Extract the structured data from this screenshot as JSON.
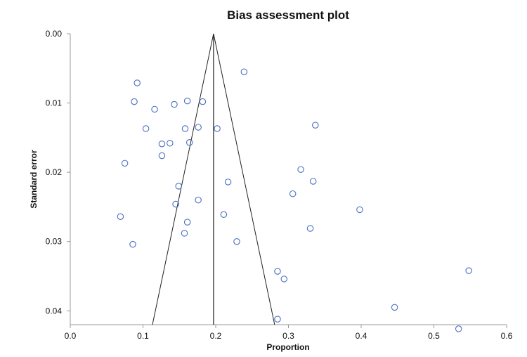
{
  "chart_data": {
    "type": "scatter",
    "title": "Bias assessment plot",
    "xlabel": "Proportion",
    "ylabel": "Standard error",
    "xlim": [
      0.0,
      0.6
    ],
    "ylim": [
      0.0,
      0.042
    ],
    "y_reversed": true,
    "grid": false,
    "x_ticks": [
      "0.0",
      "0.1",
      "0.2",
      "0.3",
      "0.4",
      "0.5",
      "0.6"
    ],
    "y_ticks": [
      "0.00",
      "0.01",
      "0.02",
      "0.03",
      "0.04"
    ],
    "marker_color": "#4a6fc2",
    "line_color": "#222222",
    "pooled_estimate": 0.197,
    "funnel_lines": [
      {
        "x": [
          0.197,
          0.113
        ],
        "y": [
          0.0,
          0.042
        ]
      },
      {
        "x": [
          0.197,
          0.281
        ],
        "y": [
          0.0,
          0.042
        ]
      }
    ],
    "points": [
      {
        "x": 0.092,
        "y": 0.0071
      },
      {
        "x": 0.088,
        "y": 0.0098
      },
      {
        "x": 0.116,
        "y": 0.0109
      },
      {
        "x": 0.143,
        "y": 0.0102
      },
      {
        "x": 0.161,
        "y": 0.0097
      },
      {
        "x": 0.182,
        "y": 0.0098
      },
      {
        "x": 0.239,
        "y": 0.0055
      },
      {
        "x": 0.104,
        "y": 0.0137
      },
      {
        "x": 0.158,
        "y": 0.0137
      },
      {
        "x": 0.176,
        "y": 0.0135
      },
      {
        "x": 0.202,
        "y": 0.0137
      },
      {
        "x": 0.337,
        "y": 0.0132
      },
      {
        "x": 0.126,
        "y": 0.0159
      },
      {
        "x": 0.137,
        "y": 0.0158
      },
      {
        "x": 0.164,
        "y": 0.0157
      },
      {
        "x": 0.126,
        "y": 0.0176
      },
      {
        "x": 0.075,
        "y": 0.0187
      },
      {
        "x": 0.317,
        "y": 0.0196
      },
      {
        "x": 0.334,
        "y": 0.0213
      },
      {
        "x": 0.217,
        "y": 0.0214
      },
      {
        "x": 0.149,
        "y": 0.022
      },
      {
        "x": 0.306,
        "y": 0.0231
      },
      {
        "x": 0.176,
        "y": 0.024
      },
      {
        "x": 0.145,
        "y": 0.0246
      },
      {
        "x": 0.398,
        "y": 0.0254
      },
      {
        "x": 0.069,
        "y": 0.0264
      },
      {
        "x": 0.211,
        "y": 0.0261
      },
      {
        "x": 0.161,
        "y": 0.0272
      },
      {
        "x": 0.33,
        "y": 0.0281
      },
      {
        "x": 0.157,
        "y": 0.0288
      },
      {
        "x": 0.229,
        "y": 0.03
      },
      {
        "x": 0.086,
        "y": 0.0304
      },
      {
        "x": 0.285,
        "y": 0.0343
      },
      {
        "x": 0.294,
        "y": 0.0354
      },
      {
        "x": 0.548,
        "y": 0.0342
      },
      {
        "x": 0.446,
        "y": 0.0395
      },
      {
        "x": 0.285,
        "y": 0.0412
      },
      {
        "x": 0.534,
        "y": 0.0426
      }
    ]
  }
}
